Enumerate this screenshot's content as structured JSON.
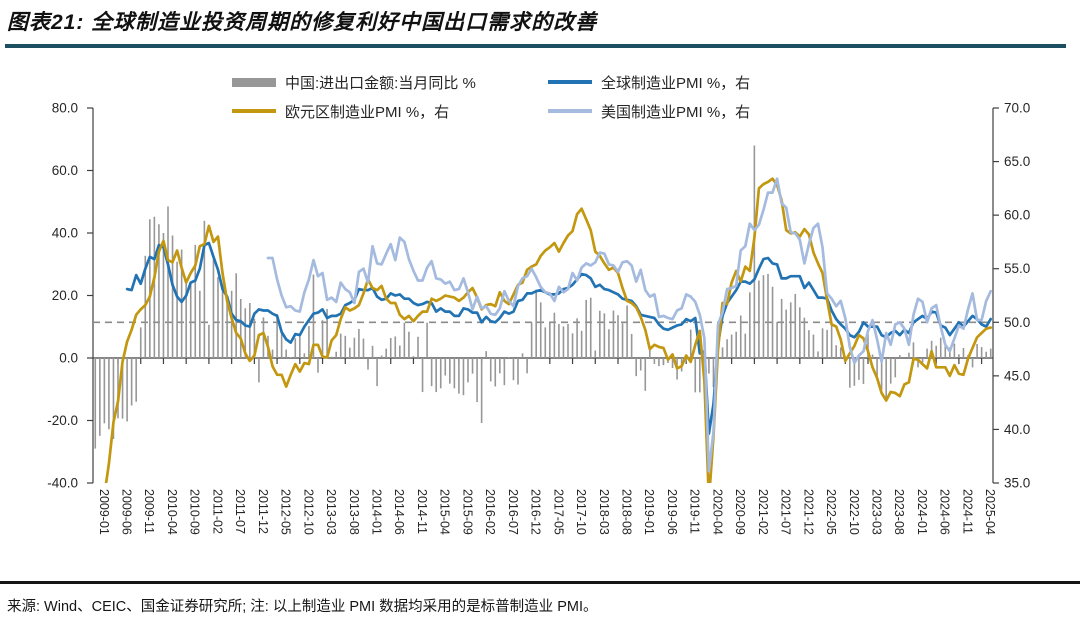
{
  "header": {
    "title": "图表21: 全球制造业投资周期的修复利好中国出口需求的改善"
  },
  "footer": {
    "note": "来源: Wind、CEIC、国金证券研究所; 注: 以上制造业 PMI 数据均采用的是标普制造业 PMI。"
  },
  "colors": {
    "title_rule": "#1d4f63",
    "footer_rule": "#161616",
    "axis": "#3f3f3f",
    "tick_text": "#262626",
    "reference_dash": "#8a8a8a"
  },
  "chart_data": {
    "type": "bar",
    "subtype": "combo-bar-and-lines",
    "title": "",
    "start_month": "2009-01",
    "end_month": "2025-06",
    "months_total": 198,
    "grid": "off",
    "legend_position": "top",
    "left_axis": {
      "min": -40,
      "max": 80,
      "step": 20,
      "tick_labels": [
        "80.0",
        "60.0",
        "40.0",
        "20.0",
        "0.0",
        "-20.0",
        "-40.0"
      ]
    },
    "right_axis": {
      "min": 35,
      "max": 70,
      "step": 5,
      "tick_labels": [
        "70.0",
        "65.0",
        "60.0",
        "55.0",
        "50.0",
        "45.0",
        "40.0",
        "35.0"
      ]
    },
    "reference_line": {
      "right_axis_value": 50,
      "style": "dashed"
    },
    "x_tick_step": 5,
    "x_tick_labels": [
      "2009-01",
      "2009-06",
      "2009-11",
      "2010-04",
      "2010-09",
      "2011-02",
      "2011-07",
      "2011-12",
      "2012-05",
      "2012-10",
      "2013-03",
      "2013-08",
      "2014-01",
      "2014-06",
      "2014-11",
      "2015-04",
      "2015-09",
      "2016-02",
      "2016-07",
      "2016-12",
      "2017-05",
      "2017-10",
      "2018-03",
      "2018-08",
      "2019-01",
      "2019-06",
      "2019-11",
      "2020-04",
      "2020-09",
      "2021-02",
      "2021-07",
      "2021-12",
      "2022-05",
      "2022-10",
      "2023-03",
      "2023-08",
      "2024-01",
      "2024-06",
      "2024-11",
      "2025-04"
    ],
    "series": [
      {
        "id": "china-trade-yoy",
        "name": "中国:进出口金额:当月同比 %",
        "type": "bar",
        "axis": "left",
        "color": "#979797",
        "start_index": 0,
        "start_month": "2009-01",
        "values": [
          -29,
          -24.9,
          -20.9,
          -22.8,
          -25.9,
          -19.3,
          -19.4,
          -20.3,
          -15.2,
          -14,
          9.8,
          32.7,
          44.4,
          45.2,
          42.8,
          40,
          48.5,
          39.2,
          30.8,
          34.7,
          24.7,
          24,
          36.2,
          21.5,
          43.9,
          10.6,
          31.5,
          25.9,
          23.5,
          18.9,
          21.5,
          27.1,
          18.9,
          15.9,
          17.6,
          12.6,
          -7.8,
          13,
          7.1,
          2.7,
          14.1,
          9,
          2.7,
          0.2,
          6.3,
          7.3,
          1.5,
          10.2,
          26.7,
          -4.7,
          12.1,
          15.7,
          0.4,
          2,
          7.8,
          7.1,
          3.3,
          6.5,
          9.3,
          6.2,
          -3.7,
          3.9,
          -9,
          0.8,
          3,
          6.4,
          6.9,
          4,
          11.3,
          8.4,
          0.6,
          6.8,
          -10.9,
          11.3,
          -9,
          -10.9,
          -9.7,
          -5.6,
          -8.2,
          -9.7,
          -11.4,
          -11.9,
          -7.8,
          -5,
          -14.1,
          -20.8,
          2.2,
          -7.5,
          -9.1,
          -4.9,
          -8.7,
          0.1,
          -7.1,
          -8.5,
          1.5,
          -4.9,
          11.3,
          21.9,
          17.8,
          9.8,
          11.5,
          14.5,
          10.9,
          10.1,
          10.9,
          7.9,
          12.7,
          8.7,
          18.6,
          19.3,
          2.4,
          15.1,
          14.3,
          9.2,
          15.2,
          13.7,
          11.1,
          16.8,
          7.7,
          -5.8,
          -4,
          -10.5,
          3.9,
          -1.9,
          -2.6,
          -2.3,
          -1.6,
          -3.2,
          -6.9,
          -4.3,
          -1.1,
          9.1,
          -11,
          -11,
          -0.8,
          -5,
          -9.3,
          1.5,
          3.4,
          6,
          7.5,
          8.4,
          13.6,
          7.8,
          21,
          68,
          24.8,
          26.5,
          26.9,
          22.8,
          11.5,
          18.9,
          15.5,
          17.8,
          20.5,
          16.2,
          12.9,
          8.9,
          7.5,
          2.1,
          9.5,
          9,
          11,
          4.1,
          3.4,
          -0.4,
          -9.5,
          -8.9,
          -7,
          -8.3,
          7.6,
          1.1,
          -6.2,
          -10.1,
          -13.6,
          -8.2,
          -6.2,
          0.9,
          0,
          1.7,
          5,
          -3,
          -1.5,
          3,
          5.5,
          3.9,
          6.5,
          5,
          3.4,
          4.6,
          1.2,
          3.2,
          1,
          -3,
          4.5,
          3.5,
          2,
          3
        ]
      },
      {
        "id": "global-pmi",
        "name": "全球制造业PMI %，右",
        "type": "line",
        "axis": "right",
        "color": "#2273b4",
        "start_index": 7,
        "start_month": "2009-08",
        "values": [
          53.1,
          53,
          54.4,
          53.6,
          55,
          56.1,
          55.9,
          57.2,
          57,
          55.4,
          53.5,
          52.4,
          51.9,
          52.5,
          53.7,
          53.9,
          55,
          57.2,
          57.4,
          56.1,
          54.9,
          53.1,
          52.4,
          50.8,
          50.2,
          50.1,
          49.7,
          49.6,
          50.8,
          51.2,
          51.1,
          51.1,
          50.8,
          50.6,
          49.1,
          48.4,
          48.1,
          48.9,
          48.8,
          49.6,
          50.2,
          50.8,
          50.9,
          51.2,
          50.4,
          50.6,
          50.6,
          50.8,
          51.6,
          51.8,
          52.1,
          53.1,
          53,
          53,
          53.2,
          52.4,
          52.1,
          52.2,
          52.7,
          52.5,
          52.6,
          52.2,
          52.2,
          51.8,
          51.6,
          51.7,
          51.9,
          51.8,
          51,
          51.3,
          51,
          51,
          50.6,
          50.6,
          51.3,
          51.2,
          50.9,
          50.9,
          50,
          50.5,
          50.1,
          50,
          50.4,
          51,
          50.8,
          51,
          52,
          52.1,
          52.7,
          52.7,
          52.9,
          53,
          52.8,
          52.6,
          52.6,
          52.7,
          53.1,
          53.2,
          53.5,
          54,
          54.5,
          54.4,
          54.1,
          53.3,
          53.5,
          53.1,
          53,
          52.8,
          52.6,
          52.2,
          52.1,
          52,
          51.5,
          50.7,
          50.6,
          50.5,
          50.4,
          49.8,
          49.4,
          49.3,
          49.5,
          49.7,
          49.8,
          50.3,
          50.1,
          50.4,
          47.1,
          47.3,
          39.6,
          42.4,
          47.9,
          50.6,
          51.8,
          52.4,
          53,
          53.8,
          53.8,
          53.6,
          54,
          55,
          55.9,
          56,
          55.5,
          55.4,
          54.1,
          54.1,
          54.3,
          54.3,
          54.3,
          53.2,
          53.7,
          53,
          52.3,
          52.3,
          52.2,
          51.1,
          50.3,
          49.8,
          49.4,
          48.8,
          48.6,
          49.1,
          50,
          49.6,
          49.6,
          49.6,
          48.8,
          48.6,
          49,
          49.2,
          48.8,
          49.3,
          49,
          50,
          50.3,
          50.6,
          50.3,
          51,
          50.9,
          49.7,
          49.5,
          48.8,
          49.4,
          50,
          49.6,
          50.1,
          50.6,
          50.3,
          49.8,
          49.6,
          50.3
        ]
      },
      {
        "id": "eurozone-pmi",
        "name": "欧元区制造业PMI %，右",
        "type": "line",
        "axis": "right",
        "color": "#c3970f",
        "start_index": 0,
        "start_month": "2009-01",
        "values": [
          34.4,
          33.5,
          33.9,
          36.8,
          40.7,
          42.6,
          46.3,
          48.2,
          49.3,
          50.7,
          51.2,
          51.6,
          52.4,
          54.2,
          56.6,
          57.6,
          55.8,
          55.6,
          56.7,
          55.1,
          53.7,
          54.6,
          55.3,
          57.1,
          57.3,
          59,
          57.5,
          58,
          54.6,
          52,
          50.4,
          49,
          48.5,
          47.1,
          46.4,
          46.9,
          48.8,
          49,
          47.7,
          45.9,
          45.1,
          45.1,
          44,
          45.1,
          46.1,
          45.4,
          46.2,
          46.1,
          47.9,
          47.9,
          46.8,
          46.7,
          48.3,
          48.8,
          50.3,
          51.4,
          51.1,
          51.3,
          51.6,
          52.7,
          54,
          53.2,
          53,
          53.4,
          52.2,
          51.8,
          51.8,
          50.7,
          50.3,
          50.6,
          50.1,
          50.6,
          51,
          51,
          52.2,
          52,
          52.2,
          52.5,
          52.4,
          52.3,
          52,
          52.3,
          52.8,
          53.2,
          52.3,
          51.2,
          51.6,
          51.7,
          51.5,
          52.8,
          52,
          51.7,
          52.6,
          53.5,
          53.7,
          54.9,
          55.2,
          55.4,
          56.2,
          56.7,
          57,
          57.4,
          56.6,
          57.4,
          58.1,
          58.5,
          60.1,
          60.6,
          59.6,
          58.6,
          56.6,
          56.2,
          55.5,
          54.9,
          55.1,
          54.6,
          53.2,
          52,
          51.8,
          51.4,
          50.5,
          49.3,
          47.5,
          47.9,
          47.7,
          47.6,
          46.5,
          47,
          45.7,
          45.9,
          46.9,
          46.3,
          47.9,
          49.2,
          44.5,
          33.4,
          39.4,
          47.4,
          51.8,
          51.7,
          53.7,
          54.8,
          53.8,
          55.2,
          54.8,
          57.9,
          62.5,
          62.9,
          63.1,
          63.4,
          62.8,
          61.4,
          58.6,
          58.3,
          58.4,
          58,
          58.7,
          58.2,
          56.5,
          55.5,
          54.6,
          52.1,
          49.8,
          49.6,
          48.4,
          46.4,
          47.1,
          47.8,
          48.8,
          48.5,
          47.3,
          45.8,
          44.8,
          43.4,
          42.7,
          43.5,
          43.4,
          43.1,
          44.2,
          44.4,
          46.6,
          46.5,
          46.1,
          45.7,
          47.3,
          45.8,
          45.8,
          45.8,
          45,
          46,
          45.2,
          45.1,
          46.6,
          47.6,
          48.6,
          49,
          49.4,
          49.5
        ]
      },
      {
        "id": "us-pmi",
        "name": "美国制造业PMI %，右",
        "type": "line",
        "axis": "right",
        "color": "#a4bade",
        "start_index": 38,
        "start_month": "2012-03",
        "values": [
          56,
          56,
          54,
          52.5,
          51.4,
          51.5,
          51.1,
          51,
          52.8,
          54,
          55.8,
          54.3,
          54.6,
          52.1,
          52.3,
          51.9,
          53.7,
          53.1,
          52.8,
          51.8,
          54.7,
          55,
          53.7,
          57.1,
          55.5,
          55.4,
          56.4,
          57.3,
          55.8,
          57.9,
          57.5,
          55.9,
          54.8,
          53.9,
          53.9,
          55.1,
          55.7,
          54.1,
          54,
          53.6,
          53.8,
          53,
          53.1,
          54.1,
          52.8,
          51.2,
          52.4,
          51.3,
          51.5,
          50.8,
          50.7,
          51.3,
          52.9,
          52,
          51.5,
          53.4,
          54.1,
          54.3,
          55,
          54.2,
          53.3,
          52.8,
          52.7,
          52,
          53.3,
          52.8,
          53.1,
          54.6,
          53.9,
          55.1,
          55.5,
          55.3,
          55.6,
          56.5,
          56.4,
          55.4,
          55.3,
          54.7,
          55.6,
          55.7,
          55.3,
          53.8,
          54.9,
          53,
          52.4,
          52.6,
          50.5,
          50.6,
          50.4,
          50.3,
          51.1,
          51.3,
          52.6,
          52.4,
          51.9,
          50.7,
          48.5,
          36.1,
          39.8,
          49.8,
          50.9,
          53.1,
          53.2,
          53.4,
          56.7,
          57.1,
          59.2,
          58.6,
          59.1,
          60.5,
          62.1,
          62.1,
          63.4,
          61.1,
          60.7,
          58.4,
          58.3,
          57.7,
          55.5,
          57.3,
          58.8,
          59.2,
          57,
          52.7,
          52.2,
          51.5,
          52,
          50.4,
          47.7,
          46.2,
          46.9,
          47.3,
          49.2,
          50.2,
          48.4,
          46.3,
          49,
          47.9,
          49.8,
          50,
          49.4,
          47.9,
          50.7,
          52.2,
          51.9,
          50,
          51.3,
          51.6,
          49.6,
          47.9,
          47.3,
          48.5,
          49.7,
          49.4,
          51.2,
          52.7,
          50.2,
          50.2,
          52,
          52.9
        ]
      }
    ]
  }
}
